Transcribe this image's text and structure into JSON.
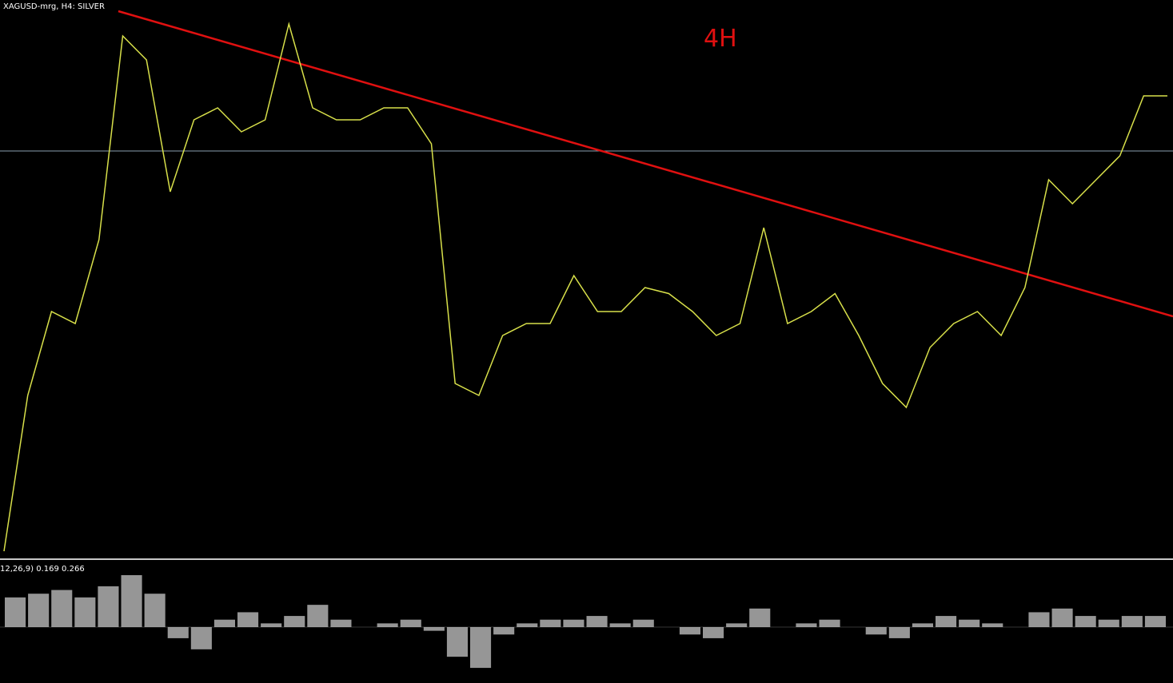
{
  "chart_data": {
    "type": "line",
    "title": "XAGUSD-mrg, H4:  SILVER",
    "annotation": "4H",
    "indicator_label": "12,26,9) 0.169 0.266",
    "price": {
      "name": "price",
      "color": "#d8e04a",
      "values": [
        140,
        270,
        340,
        330,
        400,
        570,
        550,
        440,
        500,
        510,
        490,
        500,
        580,
        510,
        500,
        500,
        510,
        510,
        480,
        280,
        270,
        320,
        330,
        330,
        370,
        340,
        340,
        360,
        355,
        340,
        320,
        330,
        410,
        330,
        340,
        355,
        320,
        280,
        260,
        310,
        330,
        340,
        320,
        360,
        450,
        430,
        450,
        470,
        520,
        520
      ]
    },
    "macd": {
      "name": "macd",
      "color": "#c8c8c8",
      "values": [
        40,
        45,
        50,
        40,
        55,
        70,
        45,
        -15,
        -30,
        10,
        20,
        5,
        15,
        30,
        10,
        0,
        5,
        10,
        -5,
        -40,
        -55,
        -10,
        5,
        10,
        10,
        15,
        5,
        10,
        0,
        -10,
        -15,
        5,
        25,
        0,
        5,
        10,
        0,
        -10,
        -15,
        5,
        15,
        10,
        5,
        0,
        20,
        25,
        15,
        10,
        15,
        15
      ]
    }
  }
}
